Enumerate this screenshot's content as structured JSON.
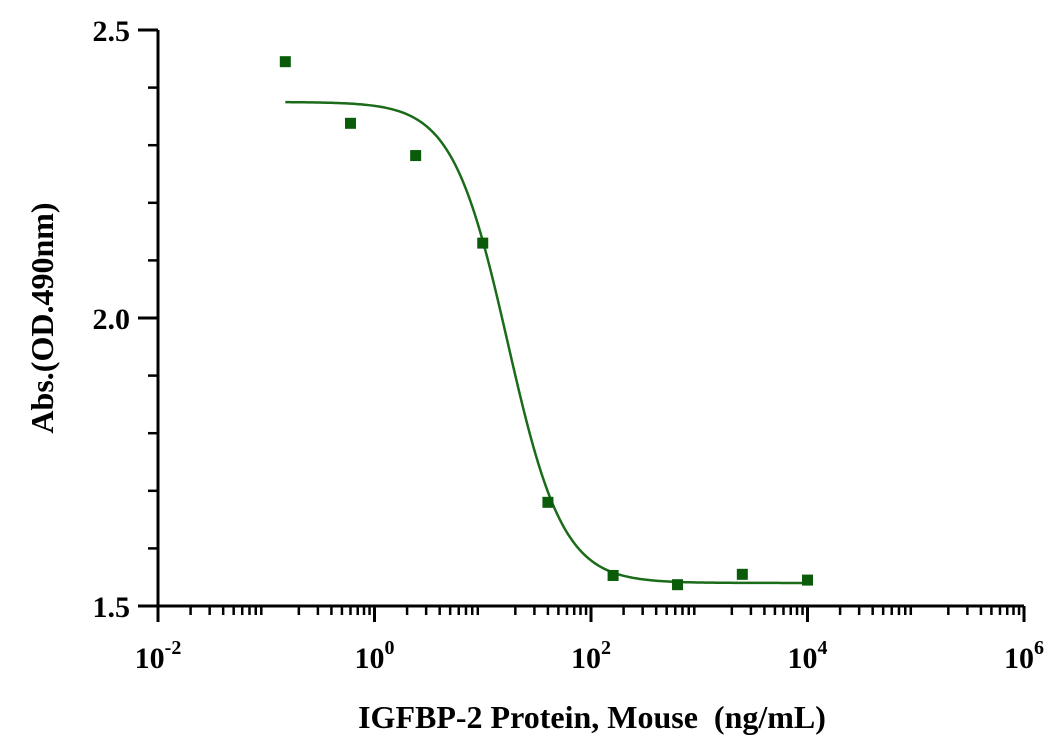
{
  "chart_data": {
    "type": "scatter",
    "title": "",
    "xlabel": "IGFBP-2 Protein, Mouse  (ng/mL)",
    "ylabel": "Abs.(OD.490nm)",
    "x_scale": "log",
    "xlim": [
      0.01,
      1000000
    ],
    "ylim": [
      1.5,
      2.5
    ],
    "x_ticks": [
      {
        "value": 0.01,
        "base": "10",
        "exp": "-2"
      },
      {
        "value": 1,
        "base": "10",
        "exp": "0"
      },
      {
        "value": 100,
        "base": "10",
        "exp": "2"
      },
      {
        "value": 10000,
        "base": "10",
        "exp": "4"
      },
      {
        "value": 1000000,
        "base": "10",
        "exp": "6"
      }
    ],
    "y_ticks": [
      {
        "value": 1.5,
        "label": "1.5"
      },
      {
        "value": 2.0,
        "label": "2.0"
      },
      {
        "value": 2.5,
        "label": "2.5"
      }
    ],
    "color": "#1a6b1a",
    "marker_color": "#0a5c0a",
    "grid": false,
    "series": [
      {
        "points": [
          {
            "x": 0.15,
            "y": 2.445
          },
          {
            "x": 0.6,
            "y": 2.338
          },
          {
            "x": 2.4,
            "y": 2.282
          },
          {
            "x": 10,
            "y": 2.13
          },
          {
            "x": 40,
            "y": 1.68
          },
          {
            "x": 160,
            "y": 1.553
          },
          {
            "x": 630,
            "y": 1.537
          },
          {
            "x": 2500,
            "y": 1.555
          },
          {
            "x": 10000,
            "y": 1.545
          }
        ],
        "fit": {
          "model": "4PL",
          "top": 2.375,
          "bottom": 1.54,
          "ec50": 17,
          "hill": 1.7,
          "x_range": [
            0.15,
            10000
          ]
        }
      }
    ]
  }
}
